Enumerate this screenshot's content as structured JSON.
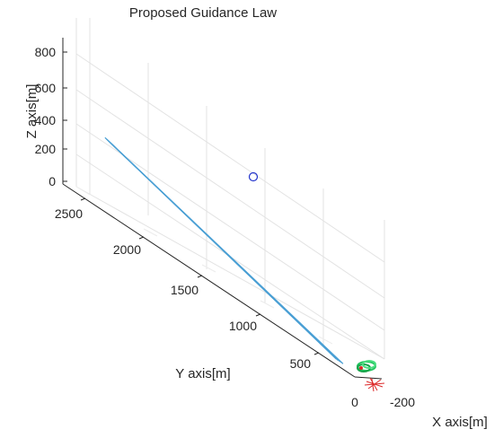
{
  "chart_data": {
    "type": "line",
    "title": "Proposed Guidance Law",
    "xlabel": "X axis[m]",
    "ylabel": "Y axis[m]",
    "zlabel": "Z axis[m]",
    "x_ticks": [
      "0",
      "-200"
    ],
    "y_ticks": [
      "500",
      "1000",
      "1500",
      "2000",
      "2500"
    ],
    "z_ticks": [
      "0",
      "200",
      "400",
      "600",
      "800"
    ],
    "grid": true,
    "colors": {
      "trajectory": "#4a9fd4",
      "launch_marker": "#22c55e",
      "target_marker": "#dc2626",
      "intercept_marker": "#2233cc"
    },
    "series": [
      {
        "points": [
          [
            -190,
            2300,
            380
          ],
          [
            -50,
            200,
            15
          ]
        ]
      },
      {
        "points": [
          [
            -195,
            2290,
            375
          ],
          [
            -55,
            190,
            12
          ]
        ]
      },
      {
        "points": [
          [
            -200,
            2280,
            370
          ],
          [
            -60,
            180,
            10
          ]
        ]
      },
      {
        "points": [
          [
            -205,
            2270,
            365
          ],
          [
            -65,
            170,
            8
          ]
        ]
      },
      {
        "points": [
          [
            -210,
            2260,
            360
          ],
          [
            -70,
            160,
            5
          ]
        ]
      }
    ]
  }
}
